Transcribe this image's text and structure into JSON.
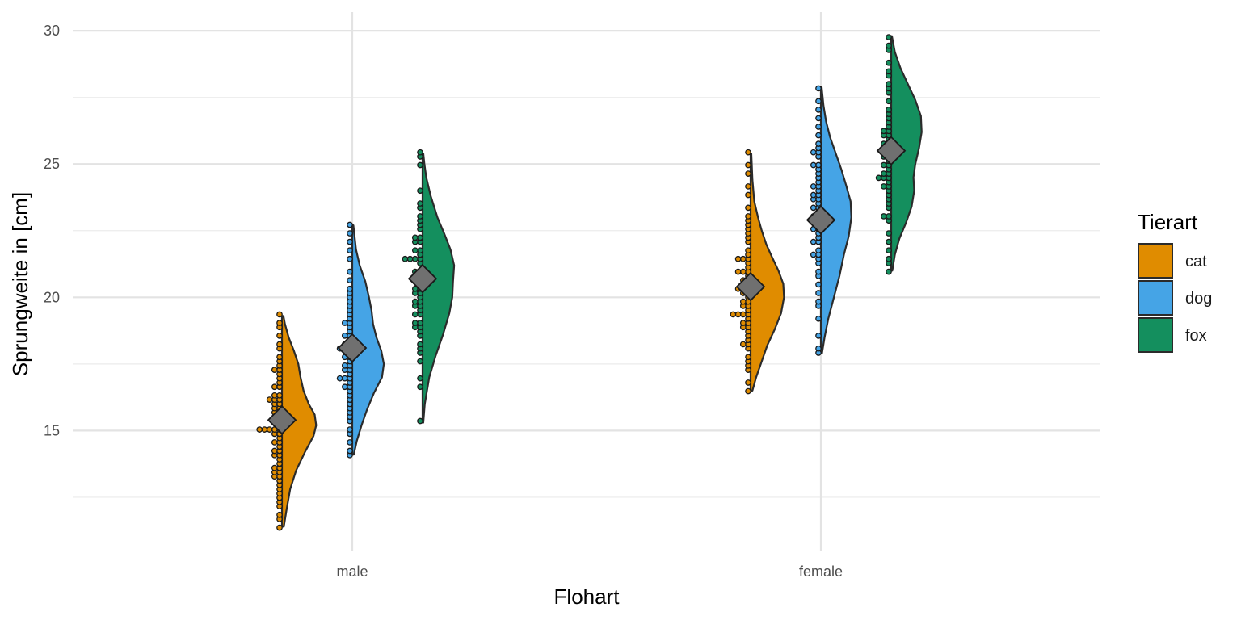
{
  "chart_data": {
    "type": "raincloud",
    "xlabel": "Flohart",
    "ylabel": "Sprungweite in [cm]",
    "categories": [
      "male",
      "female"
    ],
    "ylim": [
      10.5,
      30.7
    ],
    "yticks": [
      15,
      20,
      25,
      30
    ],
    "grid": true,
    "legend": {
      "title": "Tierart",
      "position": "right",
      "entries": [
        "cat",
        "dog",
        "fox"
      ]
    },
    "colors": {
      "cat": "#E08C00",
      "dog": "#45A4E6",
      "fox": "#148F5E",
      "mean": "#707070"
    },
    "series": [
      {
        "name": "cat",
        "groups": [
          {
            "category": "male",
            "mean": 15.4,
            "min": 11.4,
            "max": 19.3,
            "density": [
              [
                11.4,
                0.05
              ],
              [
                12.0,
                0.12
              ],
              [
                12.8,
                0.22
              ],
              [
                13.5,
                0.38
              ],
              [
                14.2,
                0.62
              ],
              [
                14.8,
                0.85
              ],
              [
                15.2,
                0.92
              ],
              [
                15.6,
                0.88
              ],
              [
                16.0,
                0.72
              ],
              [
                16.5,
                0.58
              ],
              [
                17.0,
                0.5
              ],
              [
                17.5,
                0.44
              ],
              [
                18.0,
                0.32
              ],
              [
                18.5,
                0.18
              ],
              [
                19.0,
                0.08
              ],
              [
                19.3,
                0.04
              ]
            ],
            "points": [
              11.4,
              11.6,
              11.8,
              12.1,
              12.3,
              12.5,
              12.6,
              12.8,
              13.0,
              13.1,
              13.2,
              13.3,
              13.5,
              13.5,
              13.6,
              13.6,
              13.8,
              13.9,
              14.0,
              14.1,
              14.2,
              14.2,
              14.4,
              14.5,
              14.6,
              14.7,
              14.8,
              14.9,
              15.0,
              15.0,
              15.0,
              15.1,
              15.1,
              15.2,
              15.3,
              15.4,
              15.5,
              15.6,
              15.7,
              15.8,
              15.9,
              16.0,
              16.0,
              16.1,
              16.1,
              16.2,
              16.3,
              16.4,
              16.6,
              16.7,
              16.8,
              17.0,
              17.1,
              17.2,
              17.3,
              17.5,
              17.6,
              17.8,
              18.0,
              18.2,
              18.5,
              18.8,
              19.0,
              19.3
            ]
          },
          {
            "category": "female",
            "mean": 20.4,
            "min": 16.5,
            "max": 25.4,
            "density": [
              [
                16.5,
                0.05
              ],
              [
                17.0,
                0.15
              ],
              [
                17.6,
                0.3
              ],
              [
                18.2,
                0.45
              ],
              [
                18.8,
                0.65
              ],
              [
                19.4,
                0.82
              ],
              [
                20.0,
                0.9
              ],
              [
                20.5,
                0.88
              ],
              [
                21.0,
                0.75
              ],
              [
                21.5,
                0.58
              ],
              [
                22.0,
                0.42
              ],
              [
                22.5,
                0.3
              ],
              [
                23.0,
                0.2
              ],
              [
                23.6,
                0.1
              ],
              [
                24.4,
                0.05
              ],
              [
                25.4,
                0.02
              ]
            ],
            "points": [
              16.5,
              16.8,
              17.2,
              17.4,
              17.6,
              17.8,
              18.0,
              18.2,
              18.2,
              18.4,
              18.6,
              18.7,
              18.8,
              18.9,
              19.0,
              19.1,
              19.2,
              19.3,
              19.4,
              19.4,
              19.4,
              19.5,
              19.6,
              19.7,
              19.8,
              19.9,
              20.0,
              20.1,
              20.2,
              20.3,
              20.4,
              20.4,
              20.5,
              20.6,
              20.7,
              20.8,
              20.9,
              21.0,
              21.0,
              21.1,
              21.2,
              21.4,
              21.5,
              21.5,
              21.6,
              21.8,
              22.0,
              22.2,
              22.4,
              22.5,
              22.7,
              22.9,
              23.1,
              23.4,
              23.8,
              24.2,
              24.6,
              25.0,
              25.4
            ]
          }
        ]
      },
      {
        "name": "dog",
        "groups": [
          {
            "category": "male",
            "mean": 18.1,
            "min": 14.1,
            "max": 22.7,
            "density": [
              [
                14.1,
                0.04
              ],
              [
                14.6,
                0.12
              ],
              [
                15.2,
                0.25
              ],
              [
                15.8,
                0.4
              ],
              [
                16.4,
                0.58
              ],
              [
                17.0,
                0.8
              ],
              [
                17.5,
                0.85
              ],
              [
                18.0,
                0.78
              ],
              [
                18.5,
                0.65
              ],
              [
                19.0,
                0.56
              ],
              [
                19.5,
                0.52
              ],
              [
                20.0,
                0.45
              ],
              [
                20.6,
                0.35
              ],
              [
                21.2,
                0.2
              ],
              [
                21.8,
                0.1
              ],
              [
                22.7,
                0.03
              ]
            ],
            "points": [
              14.1,
              14.3,
              14.6,
              14.9,
              15.1,
              15.3,
              15.5,
              15.7,
              15.9,
              16.0,
              16.2,
              16.4,
              16.5,
              16.6,
              16.7,
              16.8,
              16.9,
              16.9,
              17.0,
              17.1,
              17.2,
              17.3,
              17.4,
              17.5,
              17.6,
              17.7,
              17.8,
              17.9,
              18.0,
              18.1,
              18.1,
              18.2,
              18.3,
              18.4,
              18.5,
              18.6,
              18.7,
              18.8,
              19.0,
              19.1,
              19.2,
              19.3,
              19.5,
              19.6,
              19.8,
              20.0,
              20.2,
              20.4,
              20.6,
              21.0,
              21.4,
              21.8,
              22.1,
              22.4,
              22.7
            ]
          },
          {
            "category": "female",
            "mean": 22.9,
            "min": 17.9,
            "max": 27.9,
            "density": [
              [
                17.9,
                0.03
              ],
              [
                18.5,
                0.1
              ],
              [
                19.2,
                0.2
              ],
              [
                20.0,
                0.35
              ],
              [
                20.8,
                0.5
              ],
              [
                21.6,
                0.62
              ],
              [
                22.3,
                0.75
              ],
              [
                23.0,
                0.82
              ],
              [
                23.6,
                0.8
              ],
              [
                24.2,
                0.68
              ],
              [
                24.8,
                0.55
              ],
              [
                25.4,
                0.4
              ],
              [
                26.0,
                0.25
              ],
              [
                26.6,
                0.14
              ],
              [
                27.2,
                0.07
              ],
              [
                27.9,
                0.02
              ]
            ],
            "points": [
              17.9,
              18.1,
              18.6,
              19.2,
              19.6,
              19.9,
              20.2,
              20.5,
              20.8,
              21.0,
              21.2,
              21.4,
              21.6,
              21.6,
              21.8,
              22.0,
              22.1,
              22.2,
              22.4,
              22.5,
              22.6,
              22.7,
              22.8,
              22.9,
              23.0,
              23.1,
              23.2,
              23.3,
              23.4,
              23.5,
              23.6,
              23.7,
              23.8,
              23.9,
              24.0,
              24.1,
              24.2,
              24.3,
              24.4,
              24.6,
              24.8,
              24.9,
              25.0,
              25.2,
              25.4,
              25.5,
              25.6,
              25.8,
              26.1,
              26.4,
              26.7,
              27.0,
              27.4,
              27.9
            ]
          }
        ]
      },
      {
        "name": "fox",
        "groups": [
          {
            "category": "male",
            "mean": 20.7,
            "min": 15.3,
            "max": 25.4,
            "density": [
              [
                15.3,
                0.02
              ],
              [
                16.0,
                0.06
              ],
              [
                17.0,
                0.18
              ],
              [
                17.8,
                0.35
              ],
              [
                18.6,
                0.55
              ],
              [
                19.4,
                0.72
              ],
              [
                20.0,
                0.8
              ],
              [
                20.6,
                0.82
              ],
              [
                21.2,
                0.85
              ],
              [
                21.8,
                0.75
              ],
              [
                22.4,
                0.58
              ],
              [
                23.0,
                0.4
              ],
              [
                23.8,
                0.22
              ],
              [
                24.5,
                0.1
              ],
              [
                25.0,
                0.05
              ],
              [
                25.4,
                0.02
              ]
            ],
            "points": [
              15.3,
              16.7,
              16.9,
              17.6,
              17.9,
              18.1,
              18.3,
              18.6,
              18.7,
              18.8,
              18.9,
              19.0,
              19.1,
              19.3,
              19.4,
              19.5,
              19.6,
              19.7,
              19.8,
              19.9,
              20.0,
              20.1,
              20.2,
              20.3,
              20.4,
              20.5,
              20.6,
              20.7,
              20.8,
              20.9,
              21.0,
              21.2,
              21.4,
              21.4,
              21.4,
              21.5,
              21.6,
              21.7,
              21.8,
              22.0,
              22.1,
              22.2,
              22.3,
              22.5,
              22.7,
              22.9,
              23.1,
              23.3,
              23.5,
              24.0,
              24.9,
              25.2,
              25.4
            ]
          },
          {
            "category": "female",
            "mean": 25.5,
            "min": 21.0,
            "max": 29.8,
            "density": [
              [
                21.0,
                0.03
              ],
              [
                21.6,
                0.1
              ],
              [
                22.2,
                0.22
              ],
              [
                22.8,
                0.4
              ],
              [
                23.4,
                0.55
              ],
              [
                24.0,
                0.62
              ],
              [
                24.5,
                0.6
              ],
              [
                25.0,
                0.65
              ],
              [
                25.6,
                0.75
              ],
              [
                26.2,
                0.82
              ],
              [
                26.8,
                0.8
              ],
              [
                27.4,
                0.65
              ],
              [
                28.0,
                0.45
              ],
              [
                28.6,
                0.25
              ],
              [
                29.2,
                0.1
              ],
              [
                29.8,
                0.02
              ]
            ],
            "points": [
              21.0,
              21.2,
              21.5,
              21.8,
              22.1,
              22.4,
              22.8,
              23.0,
              23.1,
              23.3,
              23.5,
              23.7,
              23.9,
              24.0,
              24.1,
              24.2,
              24.3,
              24.4,
              24.4,
              24.5,
              24.6,
              24.7,
              24.8,
              24.9,
              25.0,
              25.1,
              25.2,
              25.3,
              25.4,
              25.5,
              25.6,
              25.7,
              25.8,
              25.9,
              26.0,
              26.1,
              26.2,
              26.3,
              26.4,
              26.5,
              26.7,
              26.9,
              27.1,
              27.3,
              27.6,
              27.8,
              28.0,
              28.3,
              28.5,
              28.8,
              29.2,
              29.5,
              29.8
            ]
          }
        ]
      }
    ]
  }
}
